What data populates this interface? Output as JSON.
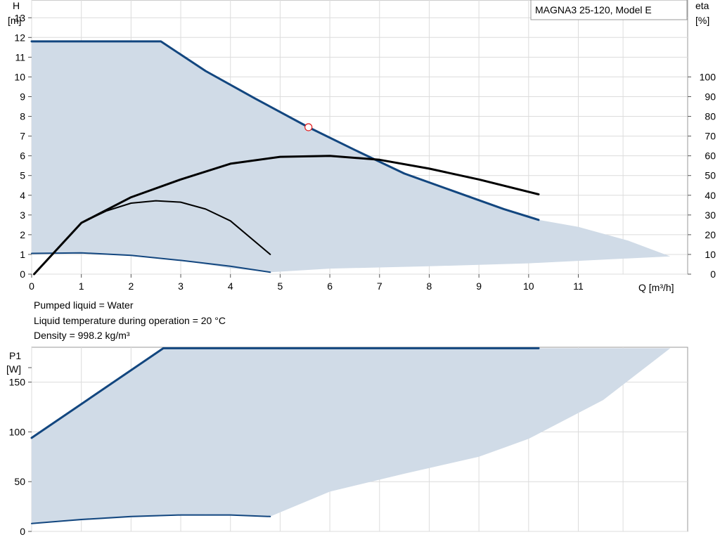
{
  "chart_data": [
    {
      "type": "line",
      "title": "MAGNA3 25-120, Model E",
      "ylabel": "H",
      "yunit": "[m]",
      "y2label": "eta",
      "y2unit": "[%]",
      "xlabel": "Q [m³/h]",
      "xlim": [
        0,
        13.2
      ],
      "ylim": [
        0,
        13.9
      ],
      "y2lim": [
        0,
        139
      ],
      "xticks": [
        0,
        1,
        2,
        3,
        4,
        5,
        6,
        7,
        8,
        9,
        10,
        11
      ],
      "yticks": [
        0,
        1,
        2,
        3,
        4,
        5,
        6,
        7,
        8,
        9,
        10,
        11,
        12,
        13
      ],
      "y2ticks": [
        0,
        10,
        20,
        30,
        40,
        50,
        60,
        70,
        80,
        90,
        100
      ],
      "grid": true,
      "area": {
        "color": "#d0dbe7",
        "upper": [
          [
            0,
            11.8
          ],
          [
            2.6,
            11.8
          ],
          [
            3.5,
            10.3
          ],
          [
            4.5,
            8.9
          ],
          [
            5.57,
            7.45
          ],
          [
            6.5,
            6.3
          ],
          [
            7.5,
            5.1
          ],
          [
            8.5,
            4.2
          ],
          [
            9.5,
            3.3
          ],
          [
            10.2,
            2.75
          ],
          [
            11.0,
            2.4
          ],
          [
            12.0,
            1.7
          ],
          [
            12.85,
            0.9
          ]
        ],
        "lower": [
          [
            12.85,
            0.9
          ],
          [
            10.0,
            0.55
          ],
          [
            8.0,
            0.4
          ],
          [
            6.0,
            0.28
          ],
          [
            4.8,
            0.1
          ],
          [
            4.0,
            0.3
          ],
          [
            3.0,
            0.7
          ],
          [
            2.0,
            0.95
          ],
          [
            1.0,
            1.08
          ],
          [
            0,
            1.05
          ]
        ]
      },
      "series": [
        {
          "axis": "H",
          "color": "#12467f",
          "width": 3,
          "x": [
            0,
            2.6,
            3.5,
            4.5,
            5.57,
            6.5,
            7.5,
            8.5,
            9.5,
            10.2
          ],
          "y": [
            11.8,
            11.8,
            10.3,
            8.9,
            7.45,
            6.3,
            5.1,
            4.2,
            3.3,
            2.75
          ]
        },
        {
          "axis": "H",
          "color": "#12467f",
          "width": 2,
          "x": [
            0,
            1.0,
            2.0,
            3.0,
            4.0,
            4.8
          ],
          "y": [
            1.05,
            1.08,
            0.95,
            0.7,
            0.4,
            0.1
          ]
        },
        {
          "axis": "eta",
          "color": "#000000",
          "width": 3,
          "x": [
            0.05,
            1.0,
            2.0,
            3.0,
            4.0,
            5.0,
            6.0,
            7.0,
            8.0,
            9.0,
            10.2
          ],
          "y": [
            0,
            26,
            39,
            48,
            56,
            59.5,
            60,
            58,
            53.5,
            48,
            40.5
          ]
        },
        {
          "axis": "eta",
          "color": "#000000",
          "width": 2,
          "x": [
            0.05,
            1.0,
            1.5,
            2.0,
            2.5,
            3.0,
            3.5,
            4.0,
            4.8
          ],
          "y": [
            0,
            26,
            32,
            36,
            37.2,
            36.5,
            33,
            27,
            10
          ]
        }
      ],
      "operating_point": {
        "x": 5.57,
        "y": 7.45,
        "color": "#e21a1a"
      },
      "notes": [
        "Pumped liquid = Water",
        "Liquid temperature during operation = 20 °C",
        "Density = 998.2 kg/m³"
      ]
    },
    {
      "type": "line",
      "ylabel": "P1",
      "yunit": "[W]",
      "xlim": [
        0,
        13.2
      ],
      "ylim": [
        0,
        185
      ],
      "yticks": [
        0,
        50,
        100,
        150
      ],
      "grid": true,
      "area": {
        "color": "#d0dbe7",
        "upper": [
          [
            0,
            94
          ],
          [
            2.65,
            184
          ],
          [
            10.2,
            184
          ],
          [
            12.85,
            184
          ]
        ],
        "lower": [
          [
            12.85,
            184
          ],
          [
            11.5,
            132
          ],
          [
            10.0,
            93
          ],
          [
            9.0,
            75
          ],
          [
            7.5,
            58
          ],
          [
            6.0,
            40
          ],
          [
            4.8,
            15
          ],
          [
            3.5,
            17
          ],
          [
            2.0,
            14
          ],
          [
            0,
            8
          ]
        ]
      },
      "series": [
        {
          "axis": "P1",
          "color": "#12467f",
          "width": 3,
          "x": [
            0,
            2.65,
            10.2
          ],
          "y": [
            94,
            184,
            184
          ]
        },
        {
          "axis": "P1",
          "color": "#12467f",
          "width": 2,
          "x": [
            0,
            1.0,
            2.0,
            3.0,
            4.0,
            4.8
          ],
          "y": [
            8,
            12,
            15,
            16.5,
            16.5,
            15
          ]
        }
      ]
    }
  ]
}
